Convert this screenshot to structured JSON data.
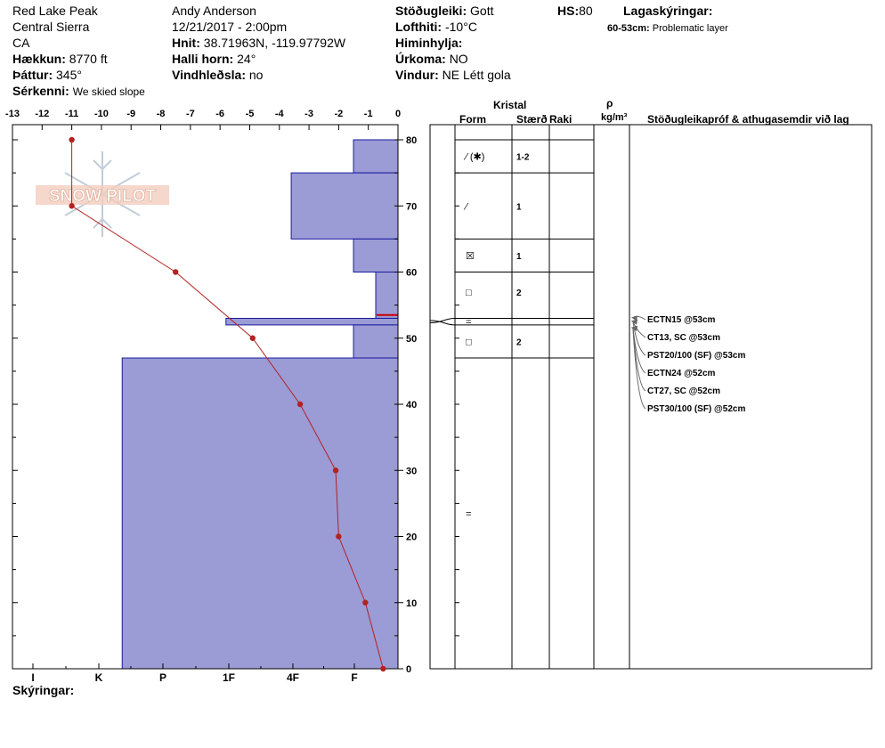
{
  "header": {
    "location": "Red Lake Peak",
    "range": "Central Sierra",
    "state": "CA",
    "elevation_label": "Hækkun:",
    "elevation": "8770 ft",
    "aspect_label": "Þáttur:",
    "aspect": "345°",
    "features_label": "Sérkenni:",
    "features": "We skied slope",
    "observer": "Andy Anderson",
    "datetime": "12/21/2017 - 2:00pm",
    "coords_label": "Hnit:",
    "coords": "38.71963N, -119.97792W",
    "slope_label": "Halli horn:",
    "slope": "24°",
    "wind_loading_label": "Vindhleðsla:",
    "wind_loading": "no",
    "stability_label": "Stöðugleiki:",
    "stability": "Gott",
    "air_temp_label": "Lofthiti:",
    "air_temp": "-10°C",
    "sky_label": "Himinhylja:",
    "sky": "",
    "precip_label": "Úrkoma:",
    "precip": "NO",
    "wind_label": "Vindur:",
    "wind": "NE Létt gola",
    "hs_label": "HS:",
    "hs": "80",
    "layer_notes_label": "Lagaskýringar:",
    "layer_note": "60-53cm:",
    "layer_note_text": "Problematic layer"
  },
  "footer": {
    "notes_label": "Skýringar:"
  },
  "watermark": "SNOW PILOT",
  "right_headers": {
    "crystal": "Kristal",
    "form": "Form",
    "size": "Stærð",
    "moisture": "Raki",
    "rho": "ρ",
    "density_unit": "kg/m³",
    "tests": "Stöðugleikapróf & athugasemdir við lag"
  },
  "chart_data": {
    "type": "line",
    "temperature_axis": {
      "min": -13,
      "max": 0,
      "ticks": [
        -13,
        -12,
        -11,
        -10,
        -9,
        -8,
        -7,
        -6,
        -5,
        -4,
        -3,
        -2,
        -1,
        0
      ]
    },
    "depth_axis": {
      "min": 0,
      "max": 80,
      "ticks": [
        0,
        10,
        20,
        30,
        40,
        50,
        60,
        70,
        80
      ]
    },
    "hardness_labels": [
      "I",
      "K",
      "P",
      "1F",
      "4F",
      "F"
    ],
    "temperature_profile": [
      {
        "depth": 80,
        "temp": -11
      },
      {
        "depth": 70,
        "temp": -11
      },
      {
        "depth": 60,
        "temp": -7.5
      },
      {
        "depth": 50,
        "temp": -4.9
      },
      {
        "depth": 40,
        "temp": -3.3
      },
      {
        "depth": 30,
        "temp": -2.1
      },
      {
        "depth": 20,
        "temp": -2
      },
      {
        "depth": 10,
        "temp": -1.1
      },
      {
        "depth": 0,
        "temp": -0.5
      }
    ],
    "hardness_profile": [
      {
        "top": 80,
        "bottom": 75,
        "temp_equiv": -1.5
      },
      {
        "top": 75,
        "bottom": 65,
        "temp_equiv": -3.6
      },
      {
        "top": 65,
        "bottom": 60,
        "temp_equiv": -1.5
      },
      {
        "top": 60,
        "bottom": 53,
        "temp_equiv": -0.75
      },
      {
        "top": 53,
        "bottom": 52,
        "temp_equiv": -5.8
      },
      {
        "top": 52,
        "bottom": 47,
        "temp_equiv": -1.5
      },
      {
        "top": 47,
        "bottom": 0,
        "temp_equiv": -9.3
      }
    ],
    "problem_marker_depth": 53.5,
    "layer_boundaries": [
      80,
      75,
      65,
      60,
      53,
      52,
      47
    ],
    "layers": [
      {
        "mid": 77.5,
        "form": "⁄ (✱)",
        "size": "1-2"
      },
      {
        "mid": 70,
        "form": "⁄",
        "size": "1"
      },
      {
        "mid": 62.5,
        "form": "☒",
        "size": "1"
      },
      {
        "mid": 57,
        "form": "□",
        "size": "2"
      },
      {
        "mid": 52.5,
        "form": "=",
        "size": ""
      },
      {
        "mid": 49.5,
        "form": "□",
        "size": "2"
      },
      {
        "mid": 23.5,
        "form": "=",
        "size": ""
      }
    ],
    "tests": [
      {
        "text": "ECTN15 @53cm",
        "depth": 53
      },
      {
        "text": "CT13, SC @53cm",
        "depth": 53
      },
      {
        "text": "PST20/100 (SF) @53cm",
        "depth": 53
      },
      {
        "text": "ECTN24 @52cm",
        "depth": 52
      },
      {
        "text": "CT27, SC @52cm",
        "depth": 52
      },
      {
        "text": "PST30/100 (SF) @52cm",
        "depth": 52
      }
    ]
  }
}
